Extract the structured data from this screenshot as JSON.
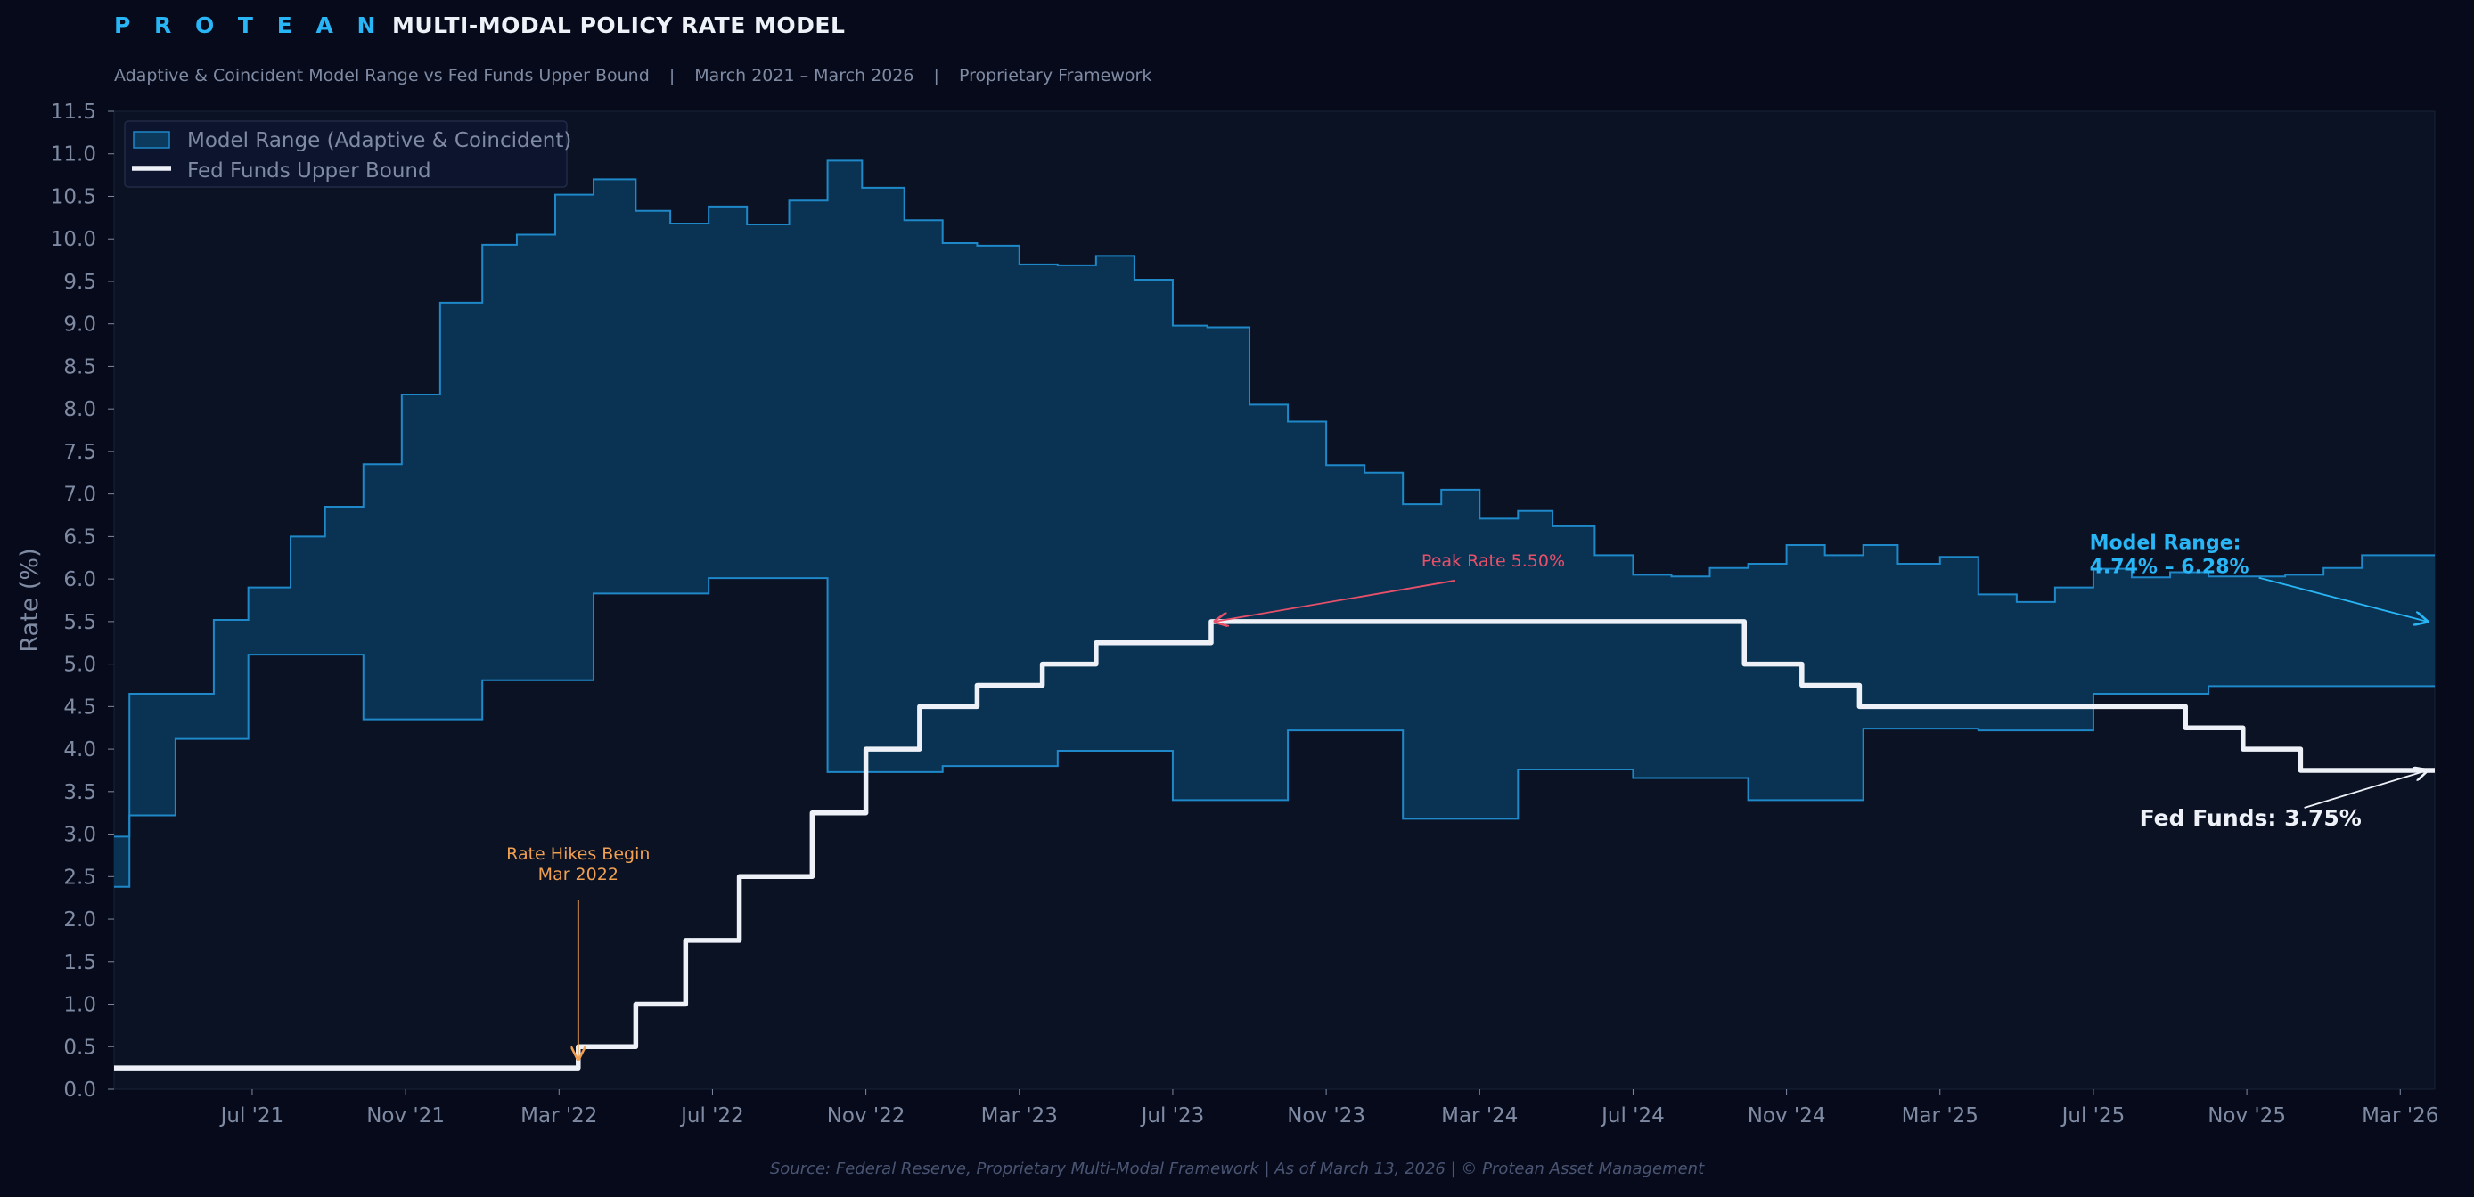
{
  "header": {
    "brand": "P R O T E A N",
    "title": "MULTI-MODAL POLICY RATE MODEL",
    "subtitle_parts": [
      "Adaptive & Coincident Model Range vs Fed Funds Upper Bound",
      "March 2021 – March 2026",
      "Proprietary Framework"
    ],
    "subtitle_sep": "|"
  },
  "footer": {
    "source": "Source: Federal Reserve, Proprietary Multi-Modal Framework | As of March 13, 2026 | © Protean Asset Management"
  },
  "colors": {
    "background": "#060a1a",
    "plot_bg": "#0b1224",
    "range_fill": "#0b3a5c",
    "range_edge": "#1e88c8",
    "fed_line": "#eef2f8",
    "axis_text": "#7f8aa3",
    "hike_annotation": "#f0a050",
    "peak_annotation": "#e8506a",
    "model_annotation": "#29b6f6"
  },
  "chart_data": {
    "type": "area",
    "title": "MULTI-MODAL POLICY RATE MODEL",
    "ylabel": "Rate (%)",
    "xlabel": "",
    "ylim": [
      0,
      11.5
    ],
    "xlim": [
      0,
      60.5
    ],
    "yticks": [
      0.0,
      0.5,
      1.0,
      1.5,
      2.0,
      2.5,
      3.0,
      3.5,
      4.0,
      4.5,
      5.0,
      5.5,
      6.0,
      6.5,
      7.0,
      7.5,
      8.0,
      8.5,
      9.0,
      9.5,
      10.0,
      10.5,
      11.0,
      11.5
    ],
    "ytick_labels": [
      "0.0",
      "0.5",
      "1.0",
      "1.5",
      "2.0",
      "2.5",
      "3.0",
      "3.5",
      "4.0",
      "4.5",
      "5.0",
      "5.5",
      "6.0",
      "6.5",
      "7.0",
      "7.5",
      "8.0",
      "8.5",
      "9.0",
      "9.5",
      "10.0",
      "10.5",
      "11.0",
      "11.5"
    ],
    "xticks": [
      {
        "label": "Jul '21",
        "x": 3.6
      },
      {
        "label": "Nov '21",
        "x": 7.6
      },
      {
        "label": "Mar '22",
        "x": 11.6
      },
      {
        "label": "Jul '22",
        "x": 15.6
      },
      {
        "label": "Nov '22",
        "x": 19.6
      },
      {
        "label": "Mar '23",
        "x": 23.6
      },
      {
        "label": "Jul '23",
        "x": 27.6
      },
      {
        "label": "Nov '23",
        "x": 31.6
      },
      {
        "label": "Mar '24",
        "x": 35.6
      },
      {
        "label": "Jul '24",
        "x": 39.6
      },
      {
        "label": "Nov '24",
        "x": 43.6
      },
      {
        "label": "Mar '25",
        "x": 47.6
      },
      {
        "label": "Jul '25",
        "x": 51.6
      },
      {
        "label": "Nov '25",
        "x": 55.6
      },
      {
        "label": "Mar '26",
        "x": 59.6
      }
    ],
    "legend": {
      "position": "top-left",
      "entries": [
        "Model Range (Adaptive & Coincident)",
        "Fed Funds Upper Bound"
      ]
    },
    "series": [
      {
        "name": "Model Range (Adaptive & Coincident)",
        "kind": "band",
        "steps": [
          {
            "x": 0.0,
            "upper": 2.97,
            "lower": 2.38
          },
          {
            "x": 0.4,
            "upper": 4.65,
            "lower": 3.22
          },
          {
            "x": 1.6,
            "upper": 4.65,
            "lower": 4.12
          },
          {
            "x": 2.6,
            "upper": 5.52,
            "lower": 4.12
          },
          {
            "x": 3.5,
            "upper": 5.9,
            "lower": 5.11
          },
          {
            "x": 4.6,
            "upper": 6.5,
            "lower": 5.11
          },
          {
            "x": 5.5,
            "upper": 6.85,
            "lower": 5.11
          },
          {
            "x": 6.5,
            "upper": 7.35,
            "lower": 4.35
          },
          {
            "x": 7.5,
            "upper": 8.17,
            "lower": 4.35
          },
          {
            "x": 8.5,
            "upper": 9.25,
            "lower": 4.35
          },
          {
            "x": 9.6,
            "upper": 9.93,
            "lower": 4.81
          },
          {
            "x": 10.5,
            "upper": 10.05,
            "lower": 4.81
          },
          {
            "x": 11.5,
            "upper": 10.52,
            "lower": 4.81
          },
          {
            "x": 12.5,
            "upper": 10.7,
            "lower": 5.83
          },
          {
            "x": 13.6,
            "upper": 10.33,
            "lower": 5.83
          },
          {
            "x": 14.5,
            "upper": 10.18,
            "lower": 5.83
          },
          {
            "x": 15.5,
            "upper": 10.38,
            "lower": 6.01
          },
          {
            "x": 16.5,
            "upper": 10.17,
            "lower": 6.01
          },
          {
            "x": 17.6,
            "upper": 10.45,
            "lower": 6.01
          },
          {
            "x": 18.6,
            "upper": 10.92,
            "lower": 3.73
          },
          {
            "x": 19.5,
            "upper": 10.6,
            "lower": 3.73
          },
          {
            "x": 20.6,
            "upper": 10.22,
            "lower": 3.73
          },
          {
            "x": 21.6,
            "upper": 9.95,
            "lower": 3.8
          },
          {
            "x": 22.5,
            "upper": 9.92,
            "lower": 3.8
          },
          {
            "x": 23.6,
            "upper": 9.7,
            "lower": 3.8
          },
          {
            "x": 24.6,
            "upper": 9.69,
            "lower": 3.98
          },
          {
            "x": 25.6,
            "upper": 9.8,
            "lower": 3.98
          },
          {
            "x": 26.6,
            "upper": 9.52,
            "lower": 3.98
          },
          {
            "x": 27.6,
            "upper": 8.98,
            "lower": 3.4
          },
          {
            "x": 28.5,
            "upper": 8.96,
            "lower": 3.4
          },
          {
            "x": 29.6,
            "upper": 8.05,
            "lower": 3.4
          },
          {
            "x": 30.6,
            "upper": 7.85,
            "lower": 4.22
          },
          {
            "x": 31.6,
            "upper": 7.34,
            "lower": 4.22
          },
          {
            "x": 32.6,
            "upper": 7.25,
            "lower": 4.22
          },
          {
            "x": 33.6,
            "upper": 6.88,
            "lower": 3.18
          },
          {
            "x": 34.6,
            "upper": 7.05,
            "lower": 3.18
          },
          {
            "x": 35.6,
            "upper": 6.71,
            "lower": 3.18
          },
          {
            "x": 36.6,
            "upper": 6.8,
            "lower": 3.76
          },
          {
            "x": 37.5,
            "upper": 6.62,
            "lower": 3.76
          },
          {
            "x": 38.6,
            "upper": 6.28,
            "lower": 3.76
          },
          {
            "x": 39.6,
            "upper": 6.05,
            "lower": 3.66
          },
          {
            "x": 40.6,
            "upper": 6.03,
            "lower": 3.66
          },
          {
            "x": 41.6,
            "upper": 6.13,
            "lower": 3.66
          },
          {
            "x": 42.6,
            "upper": 6.18,
            "lower": 3.4
          },
          {
            "x": 43.6,
            "upper": 6.4,
            "lower": 3.4
          },
          {
            "x": 44.6,
            "upper": 6.28,
            "lower": 3.4
          },
          {
            "x": 45.6,
            "upper": 6.4,
            "lower": 4.24
          },
          {
            "x": 46.5,
            "upper": 6.18,
            "lower": 4.24
          },
          {
            "x": 47.6,
            "upper": 6.26,
            "lower": 4.24
          },
          {
            "x": 48.6,
            "upper": 5.82,
            "lower": 4.22
          },
          {
            "x": 49.6,
            "upper": 5.73,
            "lower": 4.22
          },
          {
            "x": 50.6,
            "upper": 5.9,
            "lower": 4.22
          },
          {
            "x": 51.6,
            "upper": 6.12,
            "lower": 4.65
          },
          {
            "x": 52.6,
            "upper": 6.02,
            "lower": 4.65
          },
          {
            "x": 53.6,
            "upper": 6.08,
            "lower": 4.65
          },
          {
            "x": 54.6,
            "upper": 6.03,
            "lower": 4.74
          },
          {
            "x": 55.6,
            "upper": 6.03,
            "lower": 4.74
          },
          {
            "x": 56.6,
            "upper": 6.05,
            "lower": 4.74
          },
          {
            "x": 57.6,
            "upper": 6.13,
            "lower": 4.74
          },
          {
            "x": 58.6,
            "upper": 6.28,
            "lower": 4.74
          }
        ],
        "x_end": 60.5
      },
      {
        "name": "Fed Funds Upper Bound",
        "kind": "step-line",
        "steps": [
          {
            "x": 0.0,
            "y": 0.25
          },
          {
            "x": 12.1,
            "y": 0.5
          },
          {
            "x": 13.6,
            "y": 1.0
          },
          {
            "x": 14.9,
            "y": 1.75
          },
          {
            "x": 16.3,
            "y": 2.5
          },
          {
            "x": 18.2,
            "y": 3.25
          },
          {
            "x": 19.6,
            "y": 4.0
          },
          {
            "x": 21.0,
            "y": 4.5
          },
          {
            "x": 22.5,
            "y": 4.75
          },
          {
            "x": 24.2,
            "y": 5.0
          },
          {
            "x": 25.6,
            "y": 5.25
          },
          {
            "x": 28.6,
            "y": 5.5
          },
          {
            "x": 42.5,
            "y": 5.0
          },
          {
            "x": 44.0,
            "y": 4.75
          },
          {
            "x": 45.5,
            "y": 4.5
          },
          {
            "x": 54.0,
            "y": 4.25
          },
          {
            "x": 55.5,
            "y": 4.0
          },
          {
            "x": 57.0,
            "y": 3.75
          }
        ],
        "x_end": 60.5
      }
    ],
    "annotations": [
      {
        "id": "hikes",
        "lines": [
          "Rate Hikes Begin",
          "Mar 2022"
        ],
        "text_x": 12.1,
        "text_y": 2.7,
        "arrow_x": 12.1,
        "arrow_y": 0.35
      },
      {
        "id": "peak",
        "lines": [
          "Peak Rate 5.50%"
        ],
        "text_x": 34.5,
        "text_y": 6.15,
        "arrow_x": 28.7,
        "arrow_y": 5.5
      },
      {
        "id": "model",
        "lines": [
          "Model Range:",
          "4.74% – 6.28%"
        ],
        "text_x": 51.5,
        "text_y": 6.35,
        "arrow_x": 60.3,
        "arrow_y": 5.5
      },
      {
        "id": "fed",
        "lines": [
          "Fed Funds: 3.75%"
        ],
        "text_x": 52.8,
        "text_y": 3.1,
        "arrow_x": 60.3,
        "arrow_y": 3.75
      }
    ]
  }
}
